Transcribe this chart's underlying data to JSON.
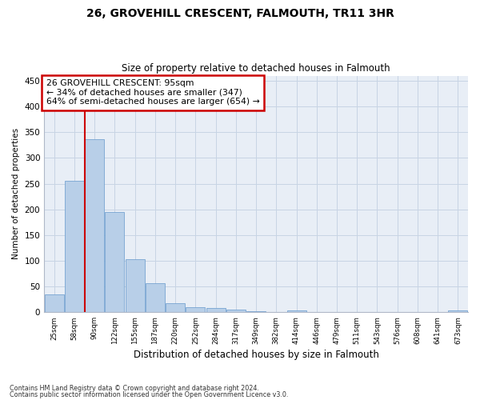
{
  "title1": "26, GROVEHILL CRESCENT, FALMOUTH, TR11 3HR",
  "title2": "Size of property relative to detached houses in Falmouth",
  "xlabel": "Distribution of detached houses by size in Falmouth",
  "ylabel": "Number of detached properties",
  "categories": [
    "25sqm",
    "58sqm",
    "90sqm",
    "122sqm",
    "155sqm",
    "187sqm",
    "220sqm",
    "252sqm",
    "284sqm",
    "317sqm",
    "349sqm",
    "382sqm",
    "414sqm",
    "446sqm",
    "479sqm",
    "511sqm",
    "543sqm",
    "576sqm",
    "608sqm",
    "641sqm",
    "673sqm"
  ],
  "values": [
    35,
    255,
    337,
    195,
    103,
    57,
    18,
    10,
    8,
    5,
    2,
    0,
    3,
    0,
    0,
    0,
    0,
    0,
    0,
    0,
    3
  ],
  "bar_color": "#b8cfe8",
  "bar_edgecolor": "#6699cc",
  "grid_color": "#c8d4e4",
  "bg_color": "#e8eef6",
  "vline_color": "#cc0000",
  "vline_x_index": 1.5,
  "annotation_text": "26 GROVEHILL CRESCENT: 95sqm\n← 34% of detached houses are smaller (347)\n64% of semi-detached houses are larger (654) →",
  "annotation_box_color": "#cc0000",
  "footnote1": "Contains HM Land Registry data © Crown copyright and database right 2024.",
  "footnote2": "Contains public sector information licensed under the Open Government Licence v3.0.",
  "ylim": [
    0,
    460
  ],
  "yticks": [
    0,
    50,
    100,
    150,
    200,
    250,
    300,
    350,
    400,
    450
  ]
}
